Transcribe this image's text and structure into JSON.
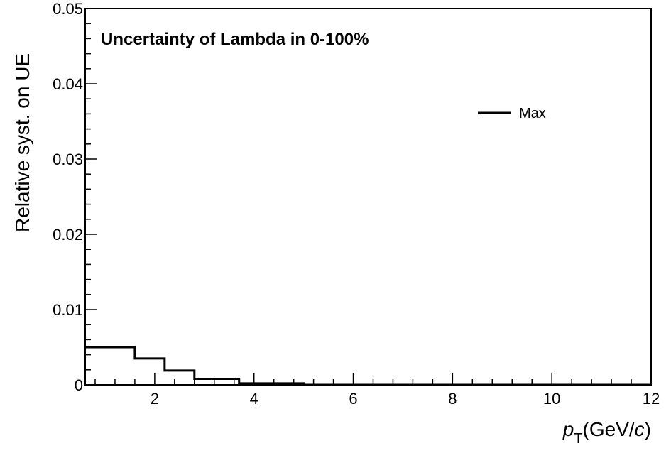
{
  "chart_data": {
    "type": "line",
    "title": "Uncertainty of Lambda in 0-100%",
    "xlabel": {
      "p": "p",
      "sub": "T",
      "unit_pre": "(GeV/",
      "unit_c": "c",
      "unit_post": ")"
    },
    "ylabel": "Relative syst. on UE",
    "xlim": [
      0.6,
      12
    ],
    "ylim": [
      0,
      0.05
    ],
    "xticks": [
      2,
      4,
      6,
      8,
      10,
      12
    ],
    "xtick_labels": [
      "2",
      "4",
      "6",
      "8",
      "10",
      "12"
    ],
    "yticks": [
      0,
      0.01,
      0.02,
      0.03,
      0.04,
      0.05
    ],
    "ytick_labels": [
      "0",
      "0.01",
      "0.02",
      "0.03",
      "0.04",
      "0.05"
    ],
    "legend": {
      "position": "top-right",
      "entries": [
        "Max"
      ]
    },
    "grid": false,
    "series": [
      {
        "name": "Max",
        "style": "step",
        "color": "#000000",
        "bin_edges": [
          0.6,
          1.6,
          2.2,
          2.8,
          3.7,
          5.0,
          12.0
        ],
        "values": [
          0.005,
          0.0035,
          0.0019,
          0.0008,
          0.0002,
          0.0
        ]
      }
    ]
  }
}
